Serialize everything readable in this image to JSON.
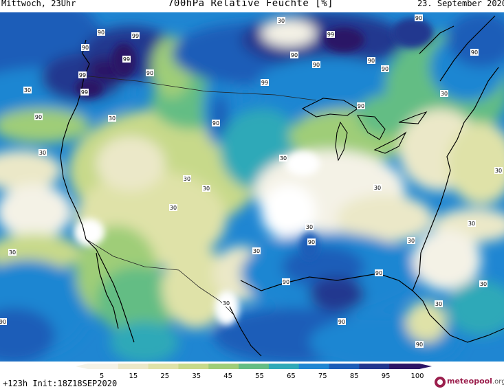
{
  "header": {
    "left": "Mittwoch, 23Uhr",
    "title": "700hPa Relative Feuchte [%]",
    "right": "23. September 2020"
  },
  "footer": {
    "run_info": "+123h Init:18Z18SEP2020",
    "brand": "meteopool",
    "brand_tld": ".org"
  },
  "legend": {
    "ticks": [
      "5",
      "15",
      "25",
      "35",
      "45",
      "55",
      "65",
      "75",
      "85",
      "95",
      "100"
    ],
    "colors": [
      "#f4f2e6",
      "#ebe8c8",
      "#dfe2a8",
      "#c7d98a",
      "#9fcd78",
      "#64bd84",
      "#2fa9b8",
      "#1f86d2",
      "#1c5db8",
      "#22378f",
      "#2c1466"
    ]
  },
  "map_labels": [
    {
      "text": "90"
    },
    {
      "text": "99"
    },
    {
      "text": "99"
    },
    {
      "text": "90"
    },
    {
      "text": "99"
    },
    {
      "text": "99"
    },
    {
      "text": "30"
    },
    {
      "text": "90"
    },
    {
      "text": "30"
    },
    {
      "text": "90"
    },
    {
      "text": "30"
    },
    {
      "text": "30"
    },
    {
      "text": "90"
    },
    {
      "text": "90"
    },
    {
      "text": "99"
    },
    {
      "text": "90"
    },
    {
      "text": "90"
    },
    {
      "text": "99"
    },
    {
      "text": "90"
    },
    {
      "text": "90"
    },
    {
      "text": "30"
    },
    {
      "text": "30"
    },
    {
      "text": "30"
    },
    {
      "text": "30"
    },
    {
      "text": "30"
    },
    {
      "text": "30"
    },
    {
      "text": "30"
    },
    {
      "text": "30"
    },
    {
      "text": "90"
    },
    {
      "text": "90"
    },
    {
      "text": "30"
    },
    {
      "text": "30"
    },
    {
      "text": "90"
    },
    {
      "text": "90"
    },
    {
      "text": "90"
    },
    {
      "text": "90"
    },
    {
      "text": "30"
    },
    {
      "text": "30"
    },
    {
      "text": "30"
    },
    {
      "text": "30"
    },
    {
      "text": "30"
    },
    {
      "text": "90"
    },
    {
      "text": "90"
    }
  ]
}
